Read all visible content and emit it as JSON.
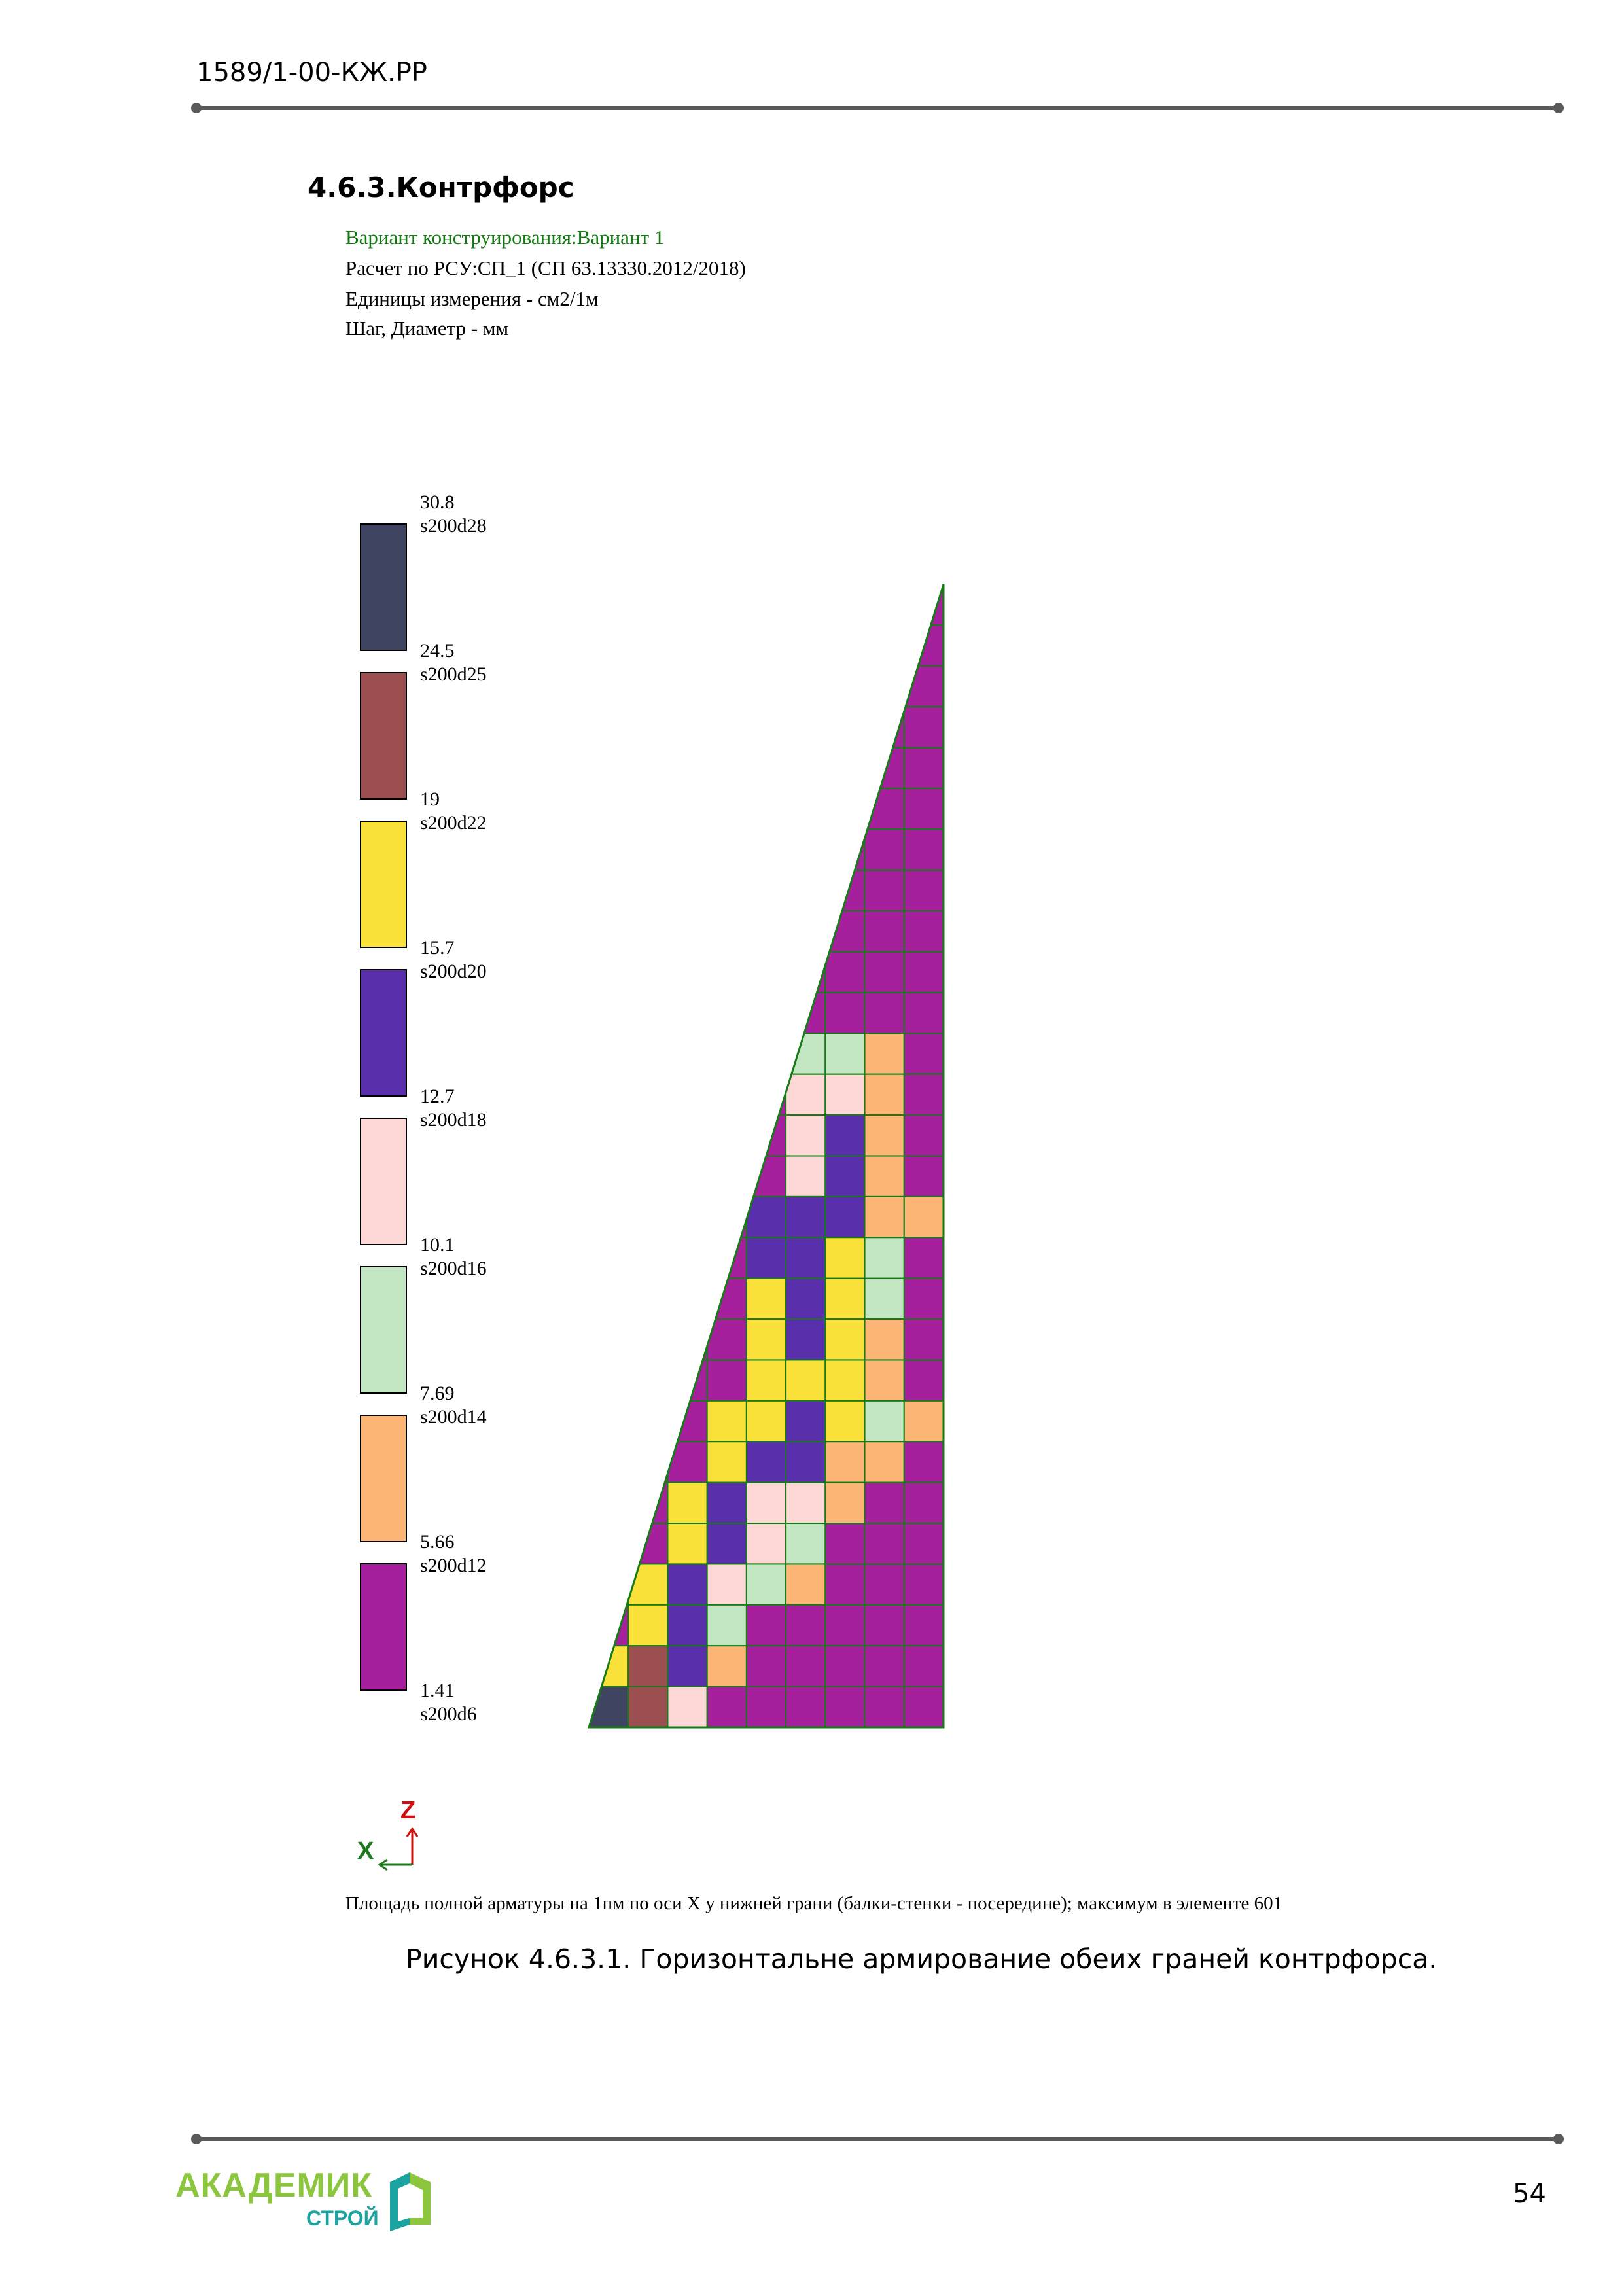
{
  "header": {
    "doc_code": "1589/1-00-КЖ.РР"
  },
  "section": {
    "title": "4.6.3.Контрфорс"
  },
  "plot_info": {
    "variant": "Вариант конструирования:Вариант 1",
    "calc": "Расчет по РСУ:СП_1 (СП 63.13330.2012/2018)",
    "units": "Единицы измерения - см2/1м",
    "step": "Шаг, Диаметр - мм"
  },
  "legend": {
    "swatches": [
      {
        "color": "#3f4560",
        "top_value": "30.8",
        "top_rebar": "s200d28"
      },
      {
        "color": "#9b4f50",
        "top_value": "24.5",
        "top_rebar": "s200d25"
      },
      {
        "color": "#fbe23a",
        "top_value": "19",
        "top_rebar": "s200d22"
      },
      {
        "color": "#5a2fab",
        "top_value": "15.7",
        "top_rebar": "s200d20"
      },
      {
        "color": "#fed7d7",
        "top_value": "12.7",
        "top_rebar": "s200d18"
      },
      {
        "color": "#c3e7c2",
        "top_value": "10.1",
        "top_rebar": "s200d16"
      },
      {
        "color": "#feb677",
        "top_value": "7.69",
        "top_rebar": "s200d14"
      },
      {
        "color": "#a61f9c",
        "top_value": "5.66",
        "top_rebar": "s200d12"
      }
    ],
    "bottom_value": "1.41",
    "bottom_rebar": "s200d6"
  },
  "mesh_colors": {
    "N": "#3f4560",
    "B": "#9b4f50",
    "Y": "#fbe23a",
    "V": "#5a2fab",
    "P": "#fed7d7",
    "G": "#c3e7c2",
    "O": "#feb677",
    "M": "#a61f9c",
    "line": "#167a16"
  },
  "mesh_rows": [
    "MMMMMMMMM",
    "MMMMMMMMM",
    "MMMMMMMMM",
    "MMMMMMMMM",
    "MMMMMMMMM",
    "MMMMMMMMM",
    "MMMMMMMMM",
    "MMMMMMMMM",
    "MMMMMMMMM",
    "MMMMMMMMM",
    "MMMMMMMMM",
    "MMMMMGGOM",
    "MMMMMPPOM",
    "MMMMMPVOM",
    "MMMMMPVOM",
    "MMMMVVVOO",
    "MMMMVVYGM",
    "MMMMYVYGM",
    "MMMMYVYOM",
    "MMMMYYYOM",
    "MMMYYVYGO",
    "MMMYVVOOM",
    "MMYVPPOMM",
    "MMYVPGMMM",
    "MYVPGOMMM",
    "MYVGMMMMM",
    "YBVOMMMMM",
    "NBPMMMMMM"
  ],
  "axes": {
    "x": "X",
    "z": "Z"
  },
  "plot_caption": "Площадь полной арматуры на 1пм по оси X у нижней грани (балки-стенки - посередине); максимум в элементе 601",
  "figure_caption": "Рисунок 4.6.3.1. Горизонтальне армирование обеих граней контрфорса.",
  "footer": {
    "logo_main": "АКАДЕМИК",
    "logo_sub": "СТРОЙ",
    "page_number": "54"
  }
}
